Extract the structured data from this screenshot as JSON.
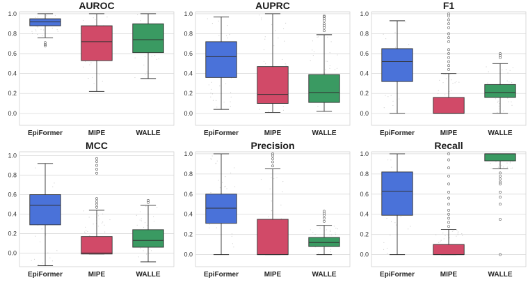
{
  "figure": {
    "colors": {
      "EpiFormer": "#4a72d9",
      "MIPE": "#d14a68",
      "WALLE": "#3a9a62"
    }
  },
  "chart_data": [
    {
      "type": "box",
      "title": "AUROC",
      "categories": [
        "EpiFormer",
        "MIPE",
        "WALLE"
      ],
      "ylim": [
        -0.12,
        1.02
      ],
      "yticks": [
        "0.0",
        "0.2",
        "0.4",
        "0.6",
        "0.8",
        "1.0"
      ],
      "grid": true,
      "boxes": [
        {
          "name": "EpiFormer",
          "whislo": 0.76,
          "q1": 0.88,
          "med": 0.92,
          "q3": 0.95,
          "whishi": 1.0,
          "outliers": [
            0.71,
            0.69,
            0.68
          ]
        },
        {
          "name": "MIPE",
          "whislo": 0.22,
          "q1": 0.53,
          "med": 0.72,
          "q3": 0.88,
          "whishi": 1.0,
          "outliers": []
        },
        {
          "name": "WALLE",
          "whislo": 0.35,
          "q1": 0.61,
          "med": 0.74,
          "q3": 0.9,
          "whishi": 1.0,
          "outliers": []
        }
      ]
    },
    {
      "type": "box",
      "title": "AUPRC",
      "categories": [
        "EpiFormer",
        "MIPE",
        "WALLE"
      ],
      "ylim": [
        -0.12,
        1.02
      ],
      "yticks": [
        "0.0",
        "0.2",
        "0.4",
        "0.6",
        "0.8",
        "1.0"
      ],
      "grid": true,
      "boxes": [
        {
          "name": "EpiFormer",
          "whislo": 0.04,
          "q1": 0.36,
          "med": 0.57,
          "q3": 0.72,
          "whishi": 0.97,
          "outliers": []
        },
        {
          "name": "MIPE",
          "whislo": 0.01,
          "q1": 0.1,
          "med": 0.19,
          "q3": 0.47,
          "whishi": 1.0,
          "outliers": []
        },
        {
          "name": "WALLE",
          "whislo": 0.02,
          "q1": 0.11,
          "med": 0.21,
          "q3": 0.39,
          "whishi": 0.79,
          "outliers": [
            0.83,
            0.86,
            0.88,
            0.9,
            0.93,
            0.95,
            0.97,
            0.98
          ]
        }
      ]
    },
    {
      "type": "box",
      "title": "F1",
      "categories": [
        "EpiFormer",
        "MIPE",
        "WALLE"
      ],
      "ylim": [
        -0.12,
        1.02
      ],
      "yticks": [
        "0.0",
        "0.2",
        "0.4",
        "0.6",
        "0.8",
        "1.0"
      ],
      "grid": true,
      "boxes": [
        {
          "name": "EpiFormer",
          "whislo": 0.0,
          "q1": 0.32,
          "med": 0.52,
          "q3": 0.65,
          "whishi": 0.93,
          "outliers": []
        },
        {
          "name": "MIPE",
          "whislo": 0.0,
          "q1": 0.0,
          "med": 0.0,
          "q3": 0.16,
          "whishi": 0.4,
          "outliers": [
            0.44,
            0.48,
            0.52,
            0.56,
            0.6,
            0.64,
            0.72,
            0.76,
            0.8,
            0.86,
            0.9,
            0.94,
            0.98,
            1.0
          ]
        },
        {
          "name": "WALLE",
          "whislo": 0.0,
          "q1": 0.16,
          "med": 0.21,
          "q3": 0.29,
          "whishi": 0.5,
          "outliers": [
            0.56,
            0.58,
            0.6
          ]
        }
      ]
    },
    {
      "type": "box",
      "title": "MCC",
      "categories": [
        "EpiFormer",
        "MIPE",
        "WALLE"
      ],
      "ylim": [
        -0.14,
        1.04
      ],
      "yticks": [
        "0.0",
        "0.2",
        "0.4",
        "0.6",
        "0.8",
        "1.0"
      ],
      "grid": true,
      "boxes": [
        {
          "name": "EpiFormer",
          "whislo": -0.13,
          "q1": 0.29,
          "med": 0.49,
          "q3": 0.6,
          "whishi": 0.92,
          "outliers": []
        },
        {
          "name": "MIPE",
          "whislo": -0.01,
          "q1": -0.01,
          "med": 0.0,
          "q3": 0.17,
          "whishi": 0.44,
          "outliers": [
            0.47,
            0.5,
            0.53,
            0.56,
            0.82,
            0.86,
            0.9,
            0.94,
            0.97
          ]
        },
        {
          "name": "WALLE",
          "whislo": -0.09,
          "q1": 0.06,
          "med": 0.13,
          "q3": 0.24,
          "whishi": 0.49,
          "outliers": [
            0.52,
            0.54
          ]
        }
      ]
    },
    {
      "type": "box",
      "title": "Precision",
      "categories": [
        "EpiFormer",
        "MIPE",
        "WALLE"
      ],
      "ylim": [
        -0.12,
        1.02
      ],
      "yticks": [
        "0.0",
        "0.2",
        "0.4",
        "0.6",
        "0.8",
        "1.0"
      ],
      "grid": true,
      "boxes": [
        {
          "name": "EpiFormer",
          "whislo": 0.0,
          "q1": 0.31,
          "med": 0.46,
          "q3": 0.6,
          "whishi": 1.0,
          "outliers": []
        },
        {
          "name": "MIPE",
          "whislo": 0.0,
          "q1": 0.0,
          "med": 0.0,
          "q3": 0.35,
          "whishi": 0.85,
          "outliers": [
            0.88,
            0.92,
            0.95,
            0.98,
            1.0
          ]
        },
        {
          "name": "WALLE",
          "whislo": 0.0,
          "q1": 0.08,
          "med": 0.12,
          "q3": 0.17,
          "whishi": 0.29,
          "outliers": [
            0.33,
            0.36,
            0.39,
            0.41,
            0.43
          ]
        }
      ]
    },
    {
      "type": "box",
      "title": "Recall",
      "categories": [
        "EpiFormer",
        "MIPE",
        "WALLE"
      ],
      "ylim": [
        -0.12,
        1.02
      ],
      "yticks": [
        "0.0",
        "0.2",
        "0.4",
        "0.6",
        "0.8",
        "1.0"
      ],
      "grid": true,
      "boxes": [
        {
          "name": "EpiFormer",
          "whislo": 0.0,
          "q1": 0.39,
          "med": 0.63,
          "q3": 0.82,
          "whishi": 1.0,
          "outliers": []
        },
        {
          "name": "MIPE",
          "whislo": 0.0,
          "q1": 0.0,
          "med": 0.0,
          "q3": 0.1,
          "whishi": 0.25,
          "outliers": [
            0.28,
            0.32,
            0.36,
            0.4,
            0.44,
            0.5,
            0.56,
            0.62,
            0.7,
            0.78,
            0.86,
            0.94,
            1.0
          ]
        },
        {
          "name": "WALLE",
          "whislo": 0.85,
          "q1": 0.93,
          "med": 1.0,
          "q3": 1.0,
          "whishi": 1.0,
          "outliers": [
            0.81,
            0.78,
            0.75,
            0.72,
            0.7,
            0.62,
            0.57,
            0.5,
            0.35,
            0.0
          ]
        }
      ]
    }
  ]
}
